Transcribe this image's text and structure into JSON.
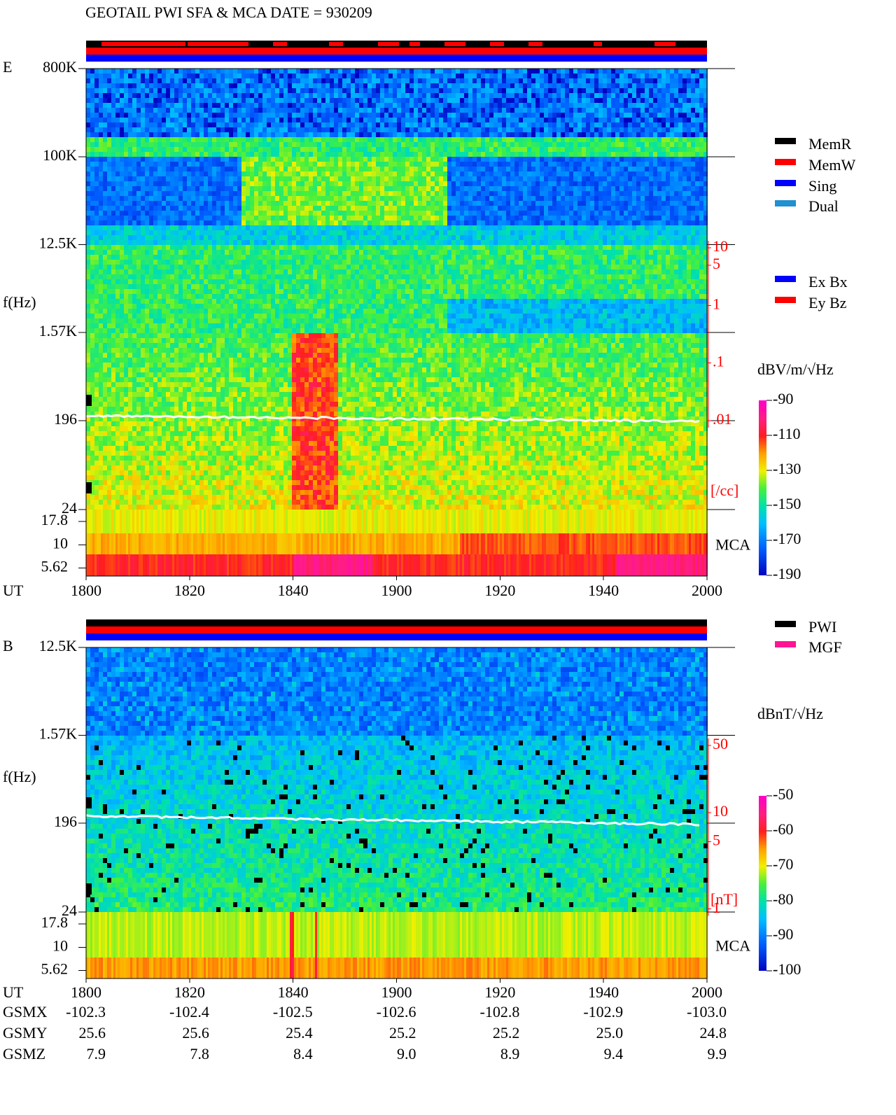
{
  "chart_data": [
    {
      "type": "spectrogram",
      "title": "GEOTAIL  PWI SFA & MCA   DATE = 930209",
      "panel_label": "E",
      "ylabel": "f(Hz)",
      "log_y": true,
      "ylim": [
        24,
        800000
      ],
      "yticks": [
        {
          "value": 800000,
          "label": "800K"
        },
        {
          "value": 100000,
          "label": "100K"
        },
        {
          "value": 12500,
          "label": "12.5K"
        },
        {
          "value": 1570,
          "label": "1.57K"
        },
        196,
        24
      ],
      "mca_label": "MCA",
      "mca_ylim": [
        4.6,
        24
      ],
      "mca_ticks": [
        17.8,
        10,
        5.62
      ],
      "xlabel": "UT",
      "x": [
        "1800",
        "1820",
        "1840",
        "1900",
        "1920",
        "1940",
        "2000"
      ],
      "y2label": "[/cc]",
      "y2lim": [
        2e-05,
        13000
      ],
      "y2ticks": [
        10,
        5,
        1,
        {
          "value": 0.1,
          "label": ".1"
        },
        {
          "value": 0.01,
          "label": ".01"
        }
      ],
      "colorbar_label": "dBV/m/√Hz",
      "clim": [
        -190,
        -90
      ],
      "cticks": [
        -90,
        -110,
        -130,
        -150,
        -170,
        -190
      ],
      "legend": [
        {
          "name": "MemR",
          "color": "#000000"
        },
        {
          "name": "MemW",
          "color": "#ff0000"
        },
        {
          "name": "Sing",
          "color": "#0000ff"
        },
        {
          "name": "Dual",
          "color": "#2090d0"
        }
      ],
      "legend2": [
        {
          "name": "Ex Bx",
          "color": "#0000ff"
        },
        {
          "name": "Ey Bz",
          "color": "#ff0000"
        }
      ]
    },
    {
      "type": "spectrogram",
      "panel_label": "B",
      "ylabel": "f(Hz)",
      "log_y": true,
      "ylim": [
        24,
        12500
      ],
      "yticks": [
        {
          "value": 12500,
          "label": "12.5K"
        },
        {
          "value": 1570,
          "label": "1.57K"
        },
        196,
        24
      ],
      "mca_label": "MCA",
      "mca_ylim": [
        4.6,
        24
      ],
      "mca_ticks": [
        17.8,
        10,
        5.62
      ],
      "xlabel": "UT",
      "x": [
        "1800",
        "1820",
        "1840",
        "1900",
        "1920",
        "1940",
        "2000"
      ],
      "y2label": "[nT]",
      "y2lim": [
        0.19,
        520
      ],
      "y2ticks": [
        50,
        10,
        5,
        1
      ],
      "colorbar_label": "dBnT/√Hz",
      "clim": [
        -100,
        -50
      ],
      "cticks": [
        -50,
        -60,
        -70,
        -80,
        -90,
        -100
      ],
      "legend": [
        {
          "name": "PWI",
          "color": "#000000"
        },
        {
          "name": "MGF",
          "color": "#ff1493"
        }
      ],
      "ephemeris": [
        {
          "label": "GSMX",
          "values": [
            "-102.3",
            "-102.4",
            "-102.5",
            "-102.6",
            "-102.8",
            "-102.9",
            "-103.0"
          ]
        },
        {
          "label": "GSMY",
          "values": [
            "25.6",
            "25.6",
            "25.4",
            "25.2",
            "25.2",
            "25.0",
            "24.8"
          ]
        },
        {
          "label": "GSMZ",
          "values": [
            "7.9",
            "7.8",
            "8.4",
            "9.0",
            "8.9",
            "9.4",
            "9.9"
          ]
        }
      ]
    }
  ]
}
